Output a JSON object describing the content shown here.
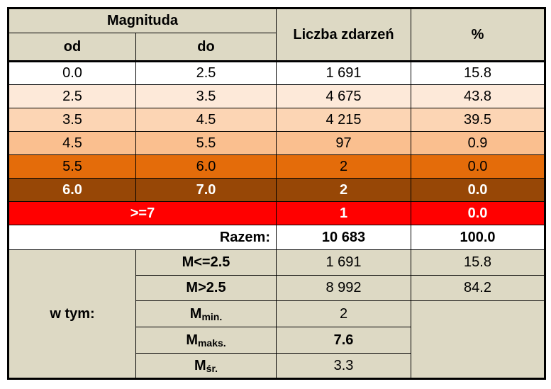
{
  "header": {
    "magnitude": "Magnituda",
    "from": "od",
    "to": "do",
    "count": "Liczba zdarzeń",
    "percent": "%"
  },
  "rows": [
    [
      "0.0",
      "2.5",
      "1 691",
      "15.8"
    ],
    [
      "2.5",
      "3.5",
      "4 675",
      "43.8"
    ],
    [
      "3.5",
      "4.5",
      "4 215",
      "39.5"
    ],
    [
      "4.5",
      "5.5",
      "97",
      "0.9"
    ],
    [
      "5.5",
      "6.0",
      "2",
      "0.0"
    ],
    [
      "6.0",
      "7.0",
      "2",
      "0.0"
    ]
  ],
  "open_row": [
    ">=7",
    "1",
    "0.0"
  ],
  "total": [
    "Razem:",
    "10 683",
    "100.0"
  ],
  "breakdown": {
    "label": "w tym:",
    "rows": [
      {
        "label": "M<=2.5",
        "count": "1 691",
        "percent": "15.8"
      },
      {
        "label": "M>2.5",
        "count": "8 992",
        "percent": "84.2"
      },
      {
        "label": {
          "main": "M",
          "sub": "min."
        },
        "count": "2"
      },
      {
        "label": {
          "main": "M",
          "sub": "maks."
        },
        "count": "7.6"
      },
      {
        "label": {
          "main": "M",
          "sub": "śr."
        },
        "count": "3.3"
      }
    ]
  }
}
